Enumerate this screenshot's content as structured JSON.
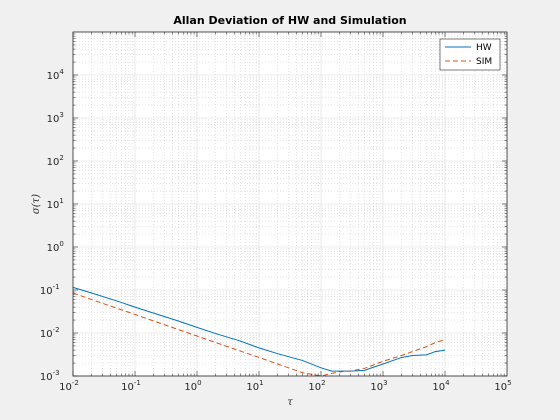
{
  "chart_data": {
    "type": "line",
    "title": "Allan Deviation of HW and Simulation",
    "xlabel": "τ",
    "ylabel": "σ(τ)",
    "xscale": "log",
    "yscale": "log",
    "xlim": [
      0.01,
      100000
    ],
    "ylim": [
      0.001,
      100000
    ],
    "grid": true,
    "minor_grid": true,
    "legend_position": "top-right",
    "x_ticks": [
      {
        "base": "10",
        "exp": "-2"
      },
      {
        "base": "10",
        "exp": "-1"
      },
      {
        "base": "10",
        "exp": "0"
      },
      {
        "base": "10",
        "exp": "1"
      },
      {
        "base": "10",
        "exp": "2"
      },
      {
        "base": "10",
        "exp": "3"
      },
      {
        "base": "10",
        "exp": "4"
      },
      {
        "base": "10",
        "exp": "5"
      }
    ],
    "y_ticks": [
      {
        "base": "10",
        "exp": "-3"
      },
      {
        "base": "10",
        "exp": "-2"
      },
      {
        "base": "10",
        "exp": "-1"
      },
      {
        "base": "10",
        "exp": "0"
      },
      {
        "base": "10",
        "exp": "1"
      },
      {
        "base": "10",
        "exp": "2"
      },
      {
        "base": "10",
        "exp": "3"
      },
      {
        "base": "10",
        "exp": "4"
      }
    ],
    "series": [
      {
        "name": "HW",
        "color": "#0072bd",
        "style": "solid",
        "x": [
          0.01,
          0.02,
          0.05,
          0.1,
          0.2,
          0.5,
          1,
          2,
          5,
          10,
          20,
          50,
          100,
          150,
          200,
          300,
          500,
          700,
          1000,
          2000,
          3000,
          5000,
          7000,
          10000
        ],
        "y": [
          0.115,
          0.085,
          0.056,
          0.04,
          0.029,
          0.019,
          0.0135,
          0.0097,
          0.0065,
          0.0045,
          0.0033,
          0.0023,
          0.00155,
          0.0013,
          0.0013,
          0.0013,
          0.00135,
          0.0016,
          0.0019,
          0.0027,
          0.003,
          0.0031,
          0.0037,
          0.004
        ]
      },
      {
        "name": "SIM",
        "color": "#d95319",
        "style": "dashed",
        "x": [
          0.01,
          0.02,
          0.05,
          0.1,
          0.2,
          0.5,
          1,
          2,
          5,
          10,
          20,
          50,
          100,
          150,
          200,
          300,
          500,
          700,
          1000,
          2000,
          3000,
          5000,
          7000,
          10000
        ],
        "y": [
          0.085,
          0.06,
          0.038,
          0.027,
          0.019,
          0.012,
          0.0085,
          0.006,
          0.0038,
          0.0027,
          0.0019,
          0.0012,
          0.001,
          0.00115,
          0.00125,
          0.0013,
          0.0015,
          0.0018,
          0.0022,
          0.003,
          0.0037,
          0.0048,
          0.006,
          0.007
        ]
      }
    ]
  }
}
